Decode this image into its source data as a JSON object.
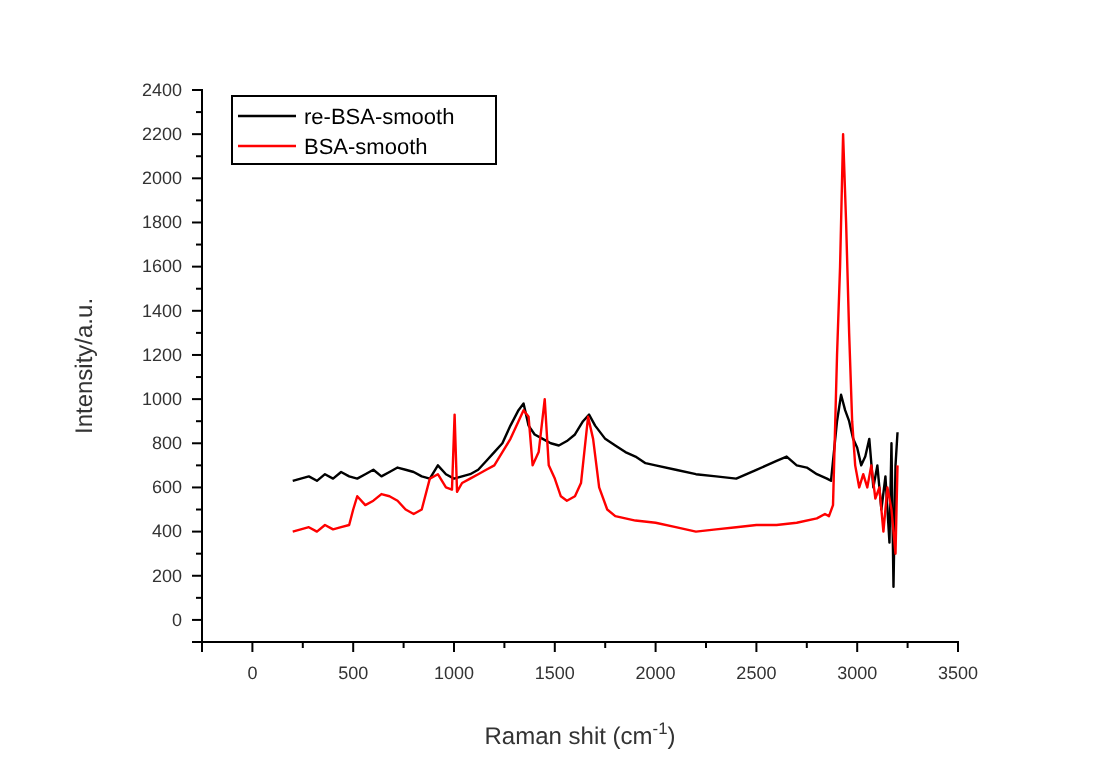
{
  "chart_data": {
    "type": "line",
    "xlabel": "Raman shit (cm$^{-1}$)",
    "ylabel": "Intensity/a.u.",
    "xlim": [
      -250,
      3500
    ],
    "ylim": [
      -100,
      2400
    ],
    "xticks": [
      0,
      500,
      1000,
      1500,
      2000,
      2500,
      3000,
      3500
    ],
    "yticks": [
      0,
      200,
      400,
      600,
      800,
      1000,
      1200,
      1400,
      1600,
      1800,
      2000,
      2200,
      2400
    ],
    "legend": "top left",
    "grid": false,
    "series": [
      {
        "name": "re-BSA-smooth",
        "color": "#000000",
        "x": [
          200,
          240,
          280,
          320,
          360,
          400,
          440,
          480,
          520,
          560,
          600,
          640,
          680,
          720,
          760,
          800,
          840,
          880,
          920,
          960,
          1000,
          1040,
          1080,
          1120,
          1160,
          1200,
          1240,
          1280,
          1320,
          1345,
          1370,
          1400,
          1440,
          1480,
          1520,
          1560,
          1600,
          1640,
          1670,
          1700,
          1750,
          1800,
          1850,
          1900,
          1950,
          2000,
          2100,
          2200,
          2300,
          2400,
          2500,
          2550,
          2600,
          2650,
          2700,
          2750,
          2800,
          2850,
          2870,
          2900,
          2920,
          2940,
          2960,
          2980,
          3000,
          3020,
          3040,
          3060,
          3080,
          3100,
          3120,
          3140,
          3160,
          3170,
          3180,
          3190,
          3200
        ],
        "values": [
          630,
          640,
          650,
          630,
          660,
          640,
          670,
          650,
          640,
          660,
          680,
          650,
          670,
          690,
          680,
          670,
          650,
          640,
          700,
          660,
          640,
          650,
          660,
          680,
          720,
          760,
          800,
          880,
          950,
          980,
          880,
          840,
          820,
          800,
          790,
          810,
          840,
          900,
          930,
          880,
          820,
          790,
          760,
          740,
          710,
          700,
          680,
          660,
          650,
          640,
          680,
          700,
          720,
          740,
          700,
          690,
          660,
          640,
          630,
          900,
          1020,
          950,
          900,
          820,
          780,
          700,
          740,
          820,
          600,
          700,
          500,
          650,
          350,
          800,
          150,
          700,
          850
        ]
      },
      {
        "name": "BSA-smooth",
        "color": "#ff0000",
        "x": [
          200,
          240,
          280,
          320,
          360,
          400,
          440,
          480,
          500,
          520,
          560,
          600,
          640,
          680,
          720,
          760,
          800,
          840,
          880,
          920,
          960,
          990,
          1003,
          1015,
          1040,
          1080,
          1120,
          1160,
          1200,
          1240,
          1280,
          1320,
          1345,
          1370,
          1390,
          1420,
          1450,
          1470,
          1500,
          1530,
          1560,
          1600,
          1630,
          1665,
          1690,
          1720,
          1760,
          1800,
          1900,
          2000,
          2100,
          2200,
          2300,
          2400,
          2500,
          2600,
          2700,
          2800,
          2840,
          2860,
          2880,
          2900,
          2915,
          2930,
          2945,
          2960,
          2975,
          2990,
          3010,
          3030,
          3050,
          3070,
          3090,
          3110,
          3130,
          3150,
          3170,
          3190,
          3200
        ],
        "values": [
          400,
          410,
          420,
          400,
          430,
          410,
          420,
          430,
          500,
          560,
          520,
          540,
          570,
          560,
          540,
          500,
          480,
          500,
          640,
          660,
          600,
          590,
          930,
          580,
          620,
          640,
          660,
          680,
          700,
          760,
          820,
          900,
          950,
          920,
          700,
          760,
          1000,
          700,
          640,
          560,
          540,
          560,
          620,
          920,
          820,
          600,
          500,
          470,
          450,
          440,
          420,
          400,
          410,
          420,
          430,
          430,
          440,
          460,
          480,
          470,
          520,
          1200,
          1600,
          2200,
          1800,
          1300,
          900,
          700,
          600,
          660,
          600,
          700,
          550,
          600,
          400,
          600,
          500,
          300,
          700
        ]
      }
    ]
  }
}
